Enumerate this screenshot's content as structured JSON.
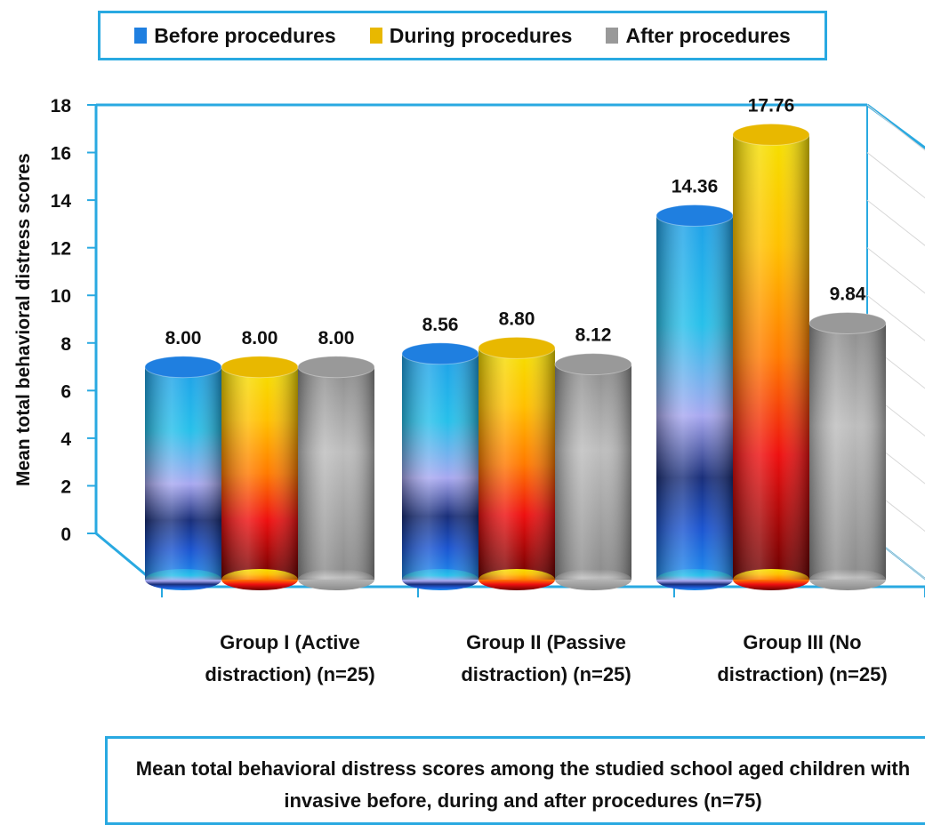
{
  "chart_data": {
    "type": "bar",
    "categories": [
      [
        "Group I (Active",
        "distraction) (n=25)"
      ],
      [
        "Group II (Passive",
        "distraction) (n=25)"
      ],
      [
        "Group III (No",
        "distraction) (n=25)"
      ]
    ],
    "series": [
      {
        "name": "Before procedures",
        "values": [
          8.0,
          8.56,
          14.36
        ],
        "labels": [
          "8.00",
          "8.56",
          "14.36"
        ],
        "color": "#1f7fe0"
      },
      {
        "name": "During procedures",
        "values": [
          8.0,
          8.8,
          17.76
        ],
        "labels": [
          "8.00",
          "8.80",
          "17.76"
        ],
        "color": "#e8b800"
      },
      {
        "name": "After procedures",
        "values": [
          8.0,
          8.12,
          9.84
        ],
        "labels": [
          "8.00",
          "8.12",
          "9.84"
        ],
        "color": "#999999"
      }
    ],
    "ylabel": "Mean total behavioral distress scores",
    "xlabel": "",
    "ylim": [
      0,
      18
    ],
    "yticks": [
      0,
      2,
      4,
      6,
      8,
      10,
      12,
      14,
      16,
      18
    ],
    "legend": "top",
    "caption_lines": [
      "Mean total behavioral distress scores among the studied school aged children with",
      "invasive before, during and after procedures (n=75)"
    ]
  }
}
